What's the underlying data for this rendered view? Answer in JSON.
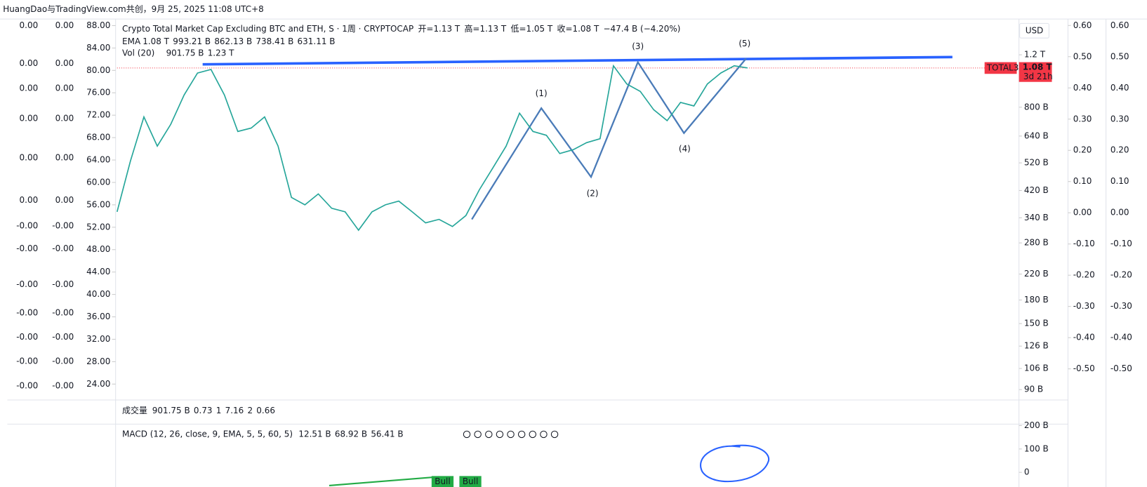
{
  "header": {
    "title": "HuangDao与TradingView.com共创，9月 25, 2025 11:08 UTC+8"
  },
  "legend": {
    "symbol": "Crypto Total Market Cap Excluding BTC and ETH, S · 1周 · CRYPTOCAP",
    "ohlc": [
      {
        "label": "开=",
        "value": "1.13 T"
      },
      {
        "label": "高=",
        "value": "1.13 T"
      },
      {
        "label": "低=",
        "value": "1.05 T"
      },
      {
        "label": "收=",
        "value": "1.08 T"
      }
    ],
    "change": "−47.4 B (−4.20%)",
    "ema": {
      "name": "EMA",
      "values": [
        "1.08 T",
        "993.21 B",
        "862.13 B",
        "738.41 B",
        "631.11 B"
      ]
    },
    "vol": {
      "name": "Vol (20)",
      "values": [
        "901.75 B",
        "1.23 T"
      ]
    }
  },
  "volume_legend": {
    "name": "成交量",
    "values": [
      "901.75 B",
      "0.73",
      "1",
      "7.16",
      "2",
      "0.66"
    ]
  },
  "macd": {
    "label": "MACD (12, 26, close, 9, EMA, 5, 5, 60, 5)",
    "values": [
      "12.51 B",
      "68.92 B",
      "56.41 B"
    ],
    "yticks": [
      {
        "value": 200,
        "label": "200 B"
      },
      {
        "value": 100,
        "label": "100 B"
      },
      0
    ]
  },
  "waves": [
    "(1)",
    "(2)",
    "(3)",
    "(4)",
    "(5)"
  ],
  "bull": [
    "Bull",
    "Bull"
  ],
  "badge": {
    "symbol": "TOTAL3",
    "price": "1.08 T",
    "countdown": "3d 21h"
  },
  "unit": "USD",
  "left_columns": [
    [
      "0.00",
      "0.00"
    ],
    [
      "0.00",
      "0.00"
    ],
    [
      "0.00",
      "0.00"
    ],
    [
      "0.00",
      "0.00"
    ],
    [
      "0.00",
      "0.00"
    ],
    [
      "0.00",
      "0.00"
    ],
    [
      "-0.00",
      "-0.00"
    ],
    [
      "-0.00",
      "-0.00"
    ],
    [
      "-0.00",
      "-0.00"
    ],
    [
      "-0.00",
      "-0.00"
    ],
    [
      "-0.00",
      "-0.00"
    ],
    [
      "-0.00",
      "-0.00"
    ],
    [
      "-0.00",
      "-0.00"
    ]
  ],
  "left_axis": {
    "ylim": [
      21.42,
      88.91
    ],
    "yticks": [
      {
        "value": 88,
        "label": "88.00"
      },
      {
        "value": 84,
        "label": "84.00"
      },
      {
        "value": 80,
        "label": "80.00"
      },
      {
        "value": 76,
        "label": "76.00"
      },
      {
        "value": 72,
        "label": "72.00"
      },
      {
        "value": 68,
        "label": "68.00"
      },
      {
        "value": 64,
        "label": "64.00"
      },
      {
        "value": 60,
        "label": "60.00"
      },
      {
        "value": 56,
        "label": "56.00"
      },
      {
        "value": 52,
        "label": "52.00"
      },
      {
        "value": 48,
        "label": "48.00"
      },
      {
        "value": 44,
        "label": "44.00"
      },
      {
        "value": 40,
        "label": "40.00"
      },
      {
        "value": 36,
        "label": "36.00"
      },
      {
        "value": 32,
        "label": "32.00"
      },
      {
        "value": 28,
        "label": "28.00"
      },
      {
        "value": 24,
        "label": "24.00"
      }
    ]
  },
  "right_osc": {
    "ylim": [
      -0.595,
      0.616
    ],
    "yticks": [
      {
        "value": 0.6,
        "label": "0.60"
      },
      {
        "value": 0.5,
        "label": "0.50"
      },
      {
        "value": 0.4,
        "label": "0.40"
      },
      {
        "value": 0.3,
        "label": "0.30"
      },
      {
        "value": 0.2,
        "label": "0.20"
      },
      {
        "value": 0.1,
        "label": "0.10"
      },
      {
        "value": 0,
        "label": "0.00"
      },
      {
        "value": -0.1,
        "label": "-0.10"
      },
      {
        "value": -0.2,
        "label": "-0.20"
      },
      {
        "value": -0.3,
        "label": "-0.30"
      },
      {
        "value": -0.4,
        "label": "-0.40"
      },
      {
        "value": -0.5,
        "label": "-0.50"
      }
    ]
  },
  "chart_data": {
    "type": "line",
    "log_scale": true,
    "color": "#26a69a",
    "ylim": [
      84,
      1565
    ],
    "yticks": [
      {
        "value": 1200,
        "label": "1.2 T"
      },
      {
        "value": 800,
        "label": "800 B"
      },
      {
        "value": 640,
        "label": "640 B"
      },
      {
        "value": 520,
        "label": "520 B"
      },
      {
        "value": 420,
        "label": "420 B"
      },
      {
        "value": 340,
        "label": "340 B"
      },
      {
        "value": 280,
        "label": "280 B"
      },
      {
        "value": 220,
        "label": "220 B"
      },
      {
        "value": 180,
        "label": "180 B"
      },
      {
        "value": 150,
        "label": "150 B"
      },
      {
        "value": 126,
        "label": "126 B"
      },
      {
        "value": 106,
        "label": "106 B"
      },
      {
        "value": 90,
        "label": "90 B"
      }
    ],
    "values": [
      356,
      528,
      742,
      592,
      701,
      880,
      1042,
      1071,
      880,
      663,
      681,
      742,
      592,
      398,
      376,
      409,
      366,
      356,
      309,
      356,
      376,
      387,
      356,
      327,
      336,
      318,
      346,
      422,
      499,
      592,
      764,
      663,
      644,
      559,
      576,
      608,
      627,
      1102,
      957,
      904,
      785,
      721,
      830,
      808,
      957,
      1042,
      1102,
      1084
    ]
  }
}
